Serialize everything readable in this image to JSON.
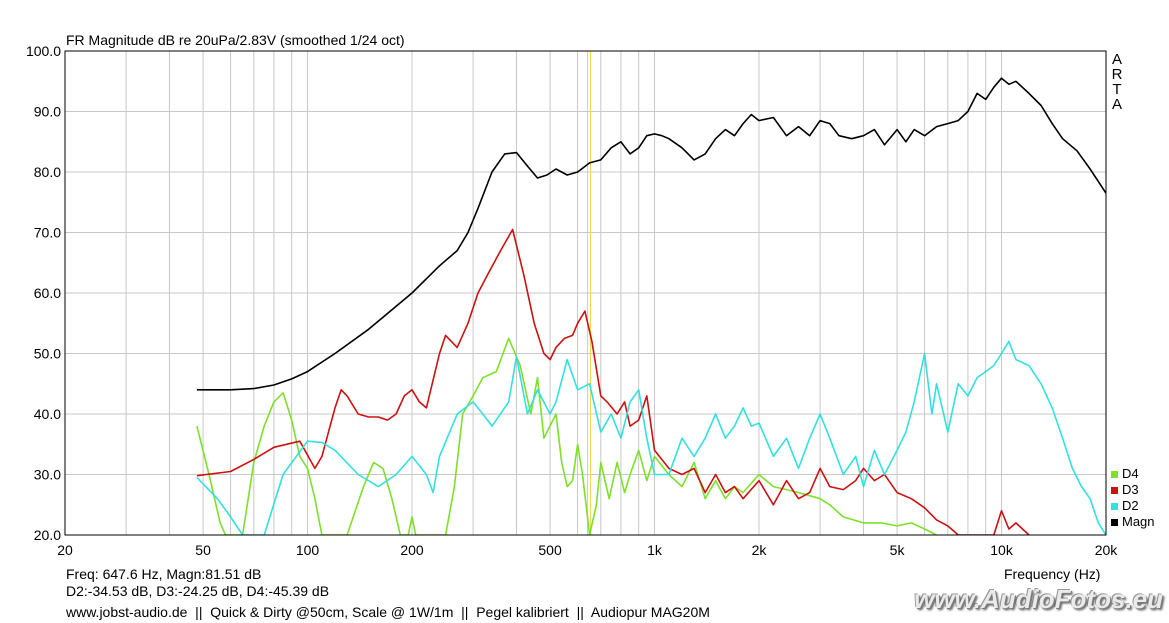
{
  "chart_data": {
    "type": "line",
    "title": "FR Magnitude dB re 20uPa/2.83V (smoothed 1/24 oct)",
    "xlabel": "Frequency (Hz)",
    "ylabel": "",
    "xscale": "log",
    "xlim": [
      20,
      20000
    ],
    "ylim": [
      20,
      100
    ],
    "grid": true,
    "x_ticks": [
      20,
      50,
      100,
      200,
      500,
      1000,
      2000,
      5000,
      10000,
      20000
    ],
    "x_tick_labels": [
      "20",
      "50",
      "100",
      "200",
      "500",
      "1k",
      "2k",
      "5k",
      "10k",
      "20k"
    ],
    "y_ticks": [
      20,
      30,
      40,
      50,
      60,
      70,
      80,
      90,
      100
    ],
    "y_tick_labels": [
      "20.0",
      "30.0",
      "40.0",
      "50.0",
      "60.0",
      "70.0",
      "80.0",
      "90.0",
      "100.0"
    ],
    "cursor_freq": 647.6,
    "legend_position": "bottom-right",
    "series": [
      {
        "name": "Magn",
        "color": "#000000",
        "points": [
          [
            48,
            44
          ],
          [
            60,
            44
          ],
          [
            70,
            44.2
          ],
          [
            80,
            44.8
          ],
          [
            90,
            45.8
          ],
          [
            100,
            47
          ],
          [
            120,
            50
          ],
          [
            150,
            54
          ],
          [
            200,
            60
          ],
          [
            240,
            64.5
          ],
          [
            270,
            67
          ],
          [
            290,
            70
          ],
          [
            310,
            74
          ],
          [
            340,
            80
          ],
          [
            370,
            83
          ],
          [
            400,
            83.2
          ],
          [
            430,
            81
          ],
          [
            460,
            79
          ],
          [
            490,
            79.5
          ],
          [
            520,
            80.5
          ],
          [
            560,
            79.5
          ],
          [
            600,
            80
          ],
          [
            650,
            81.5
          ],
          [
            700,
            82
          ],
          [
            750,
            84
          ],
          [
            800,
            85
          ],
          [
            850,
            83
          ],
          [
            900,
            84
          ],
          [
            950,
            86
          ],
          [
            1000,
            86.3
          ],
          [
            1050,
            86
          ],
          [
            1100,
            85.5
          ],
          [
            1200,
            84
          ],
          [
            1300,
            82
          ],
          [
            1400,
            83
          ],
          [
            1500,
            85.5
          ],
          [
            1600,
            87
          ],
          [
            1700,
            86
          ],
          [
            1800,
            88
          ],
          [
            1900,
            89.5
          ],
          [
            2000,
            88.5
          ],
          [
            2200,
            89
          ],
          [
            2400,
            86
          ],
          [
            2600,
            87.5
          ],
          [
            2800,
            86
          ],
          [
            3000,
            88.5
          ],
          [
            3200,
            88
          ],
          [
            3400,
            86
          ],
          [
            3700,
            85.5
          ],
          [
            4000,
            86
          ],
          [
            4300,
            87
          ],
          [
            4600,
            84.5
          ],
          [
            5000,
            87
          ],
          [
            5300,
            85
          ],
          [
            5600,
            87
          ],
          [
            6000,
            86
          ],
          [
            6500,
            87.5
          ],
          [
            7000,
            88
          ],
          [
            7500,
            88.5
          ],
          [
            8000,
            90
          ],
          [
            8500,
            93
          ],
          [
            9000,
            92
          ],
          [
            9500,
            94
          ],
          [
            10000,
            95.5
          ],
          [
            10500,
            94.5
          ],
          [
            11000,
            95
          ],
          [
            12000,
            93
          ],
          [
            13000,
            91
          ],
          [
            14000,
            88
          ],
          [
            15000,
            85.5
          ],
          [
            16500,
            83.5
          ],
          [
            18000,
            80.5
          ],
          [
            20000,
            76.5
          ]
        ]
      },
      {
        "name": "D2",
        "color": "#33e0e0",
        "points": [
          [
            48,
            29.5
          ],
          [
            55,
            26
          ],
          [
            60,
            23
          ],
          [
            65,
            20
          ],
          [
            75,
            20
          ],
          [
            85,
            30
          ],
          [
            100,
            35.5
          ],
          [
            110,
            35.3
          ],
          [
            120,
            34
          ],
          [
            140,
            30
          ],
          [
            160,
            28
          ],
          [
            180,
            30
          ],
          [
            200,
            33
          ],
          [
            220,
            30
          ],
          [
            230,
            27
          ],
          [
            240,
            33
          ],
          [
            270,
            40
          ],
          [
            300,
            42
          ],
          [
            320,
            40
          ],
          [
            340,
            38
          ],
          [
            380,
            42
          ],
          [
            400,
            49.5
          ],
          [
            430,
            40
          ],
          [
            460,
            44
          ],
          [
            500,
            40
          ],
          [
            520,
            42
          ],
          [
            560,
            49
          ],
          [
            600,
            44
          ],
          [
            650,
            45
          ],
          [
            700,
            37
          ],
          [
            750,
            40
          ],
          [
            800,
            36
          ],
          [
            850,
            42
          ],
          [
            900,
            44
          ],
          [
            950,
            36
          ],
          [
            1000,
            30
          ],
          [
            1100,
            30
          ],
          [
            1200,
            36
          ],
          [
            1300,
            33
          ],
          [
            1400,
            36
          ],
          [
            1500,
            40
          ],
          [
            1600,
            36
          ],
          [
            1700,
            38
          ],
          [
            1800,
            41
          ],
          [
            1900,
            38
          ],
          [
            2000,
            38.5
          ],
          [
            2200,
            33
          ],
          [
            2400,
            36
          ],
          [
            2600,
            31
          ],
          [
            2800,
            36
          ],
          [
            3000,
            40
          ],
          [
            3200,
            36
          ],
          [
            3500,
            30
          ],
          [
            3800,
            33
          ],
          [
            4000,
            28
          ],
          [
            4300,
            34
          ],
          [
            4600,
            30
          ],
          [
            5000,
            34
          ],
          [
            5300,
            37
          ],
          [
            5600,
            42
          ],
          [
            6000,
            50
          ],
          [
            6300,
            40
          ],
          [
            6500,
            45
          ],
          [
            7000,
            37
          ],
          [
            7500,
            45
          ],
          [
            8000,
            43
          ],
          [
            8500,
            46
          ],
          [
            9000,
            47
          ],
          [
            9500,
            48
          ],
          [
            10000,
            50
          ],
          [
            10500,
            52
          ],
          [
            11000,
            49
          ],
          [
            12000,
            48
          ],
          [
            13000,
            45
          ],
          [
            14000,
            41
          ],
          [
            15000,
            36
          ],
          [
            16000,
            31
          ],
          [
            17000,
            28
          ],
          [
            18000,
            26
          ],
          [
            19000,
            22
          ],
          [
            20000,
            20
          ]
        ]
      },
      {
        "name": "D3",
        "color": "#cc1111",
        "points": [
          [
            48,
            29.8
          ],
          [
            60,
            30.5
          ],
          [
            70,
            32.5
          ],
          [
            80,
            34.5
          ],
          [
            95,
            35.5
          ],
          [
            105,
            31
          ],
          [
            110,
            33
          ],
          [
            120,
            41
          ],
          [
            125,
            44
          ],
          [
            130,
            43
          ],
          [
            140,
            40
          ],
          [
            150,
            39.5
          ],
          [
            160,
            39.5
          ],
          [
            170,
            39
          ],
          [
            180,
            40
          ],
          [
            190,
            43
          ],
          [
            200,
            44
          ],
          [
            210,
            42
          ],
          [
            220,
            41
          ],
          [
            240,
            50
          ],
          [
            250,
            53
          ],
          [
            270,
            51
          ],
          [
            290,
            55
          ],
          [
            310,
            60
          ],
          [
            330,
            63
          ],
          [
            360,
            67
          ],
          [
            390,
            70.5
          ],
          [
            420,
            63
          ],
          [
            450,
            55
          ],
          [
            480,
            50
          ],
          [
            500,
            49
          ],
          [
            520,
            51
          ],
          [
            550,
            52.5
          ],
          [
            580,
            53
          ],
          [
            600,
            55
          ],
          [
            630,
            57
          ],
          [
            660,
            52
          ],
          [
            700,
            43
          ],
          [
            730,
            42
          ],
          [
            780,
            40
          ],
          [
            820,
            42
          ],
          [
            850,
            38
          ],
          [
            900,
            39
          ],
          [
            950,
            43
          ],
          [
            1000,
            34
          ],
          [
            1100,
            31
          ],
          [
            1200,
            30
          ],
          [
            1300,
            31
          ],
          [
            1400,
            27
          ],
          [
            1500,
            30
          ],
          [
            1600,
            27
          ],
          [
            1700,
            28
          ],
          [
            1800,
            26
          ],
          [
            2000,
            29
          ],
          [
            2200,
            25
          ],
          [
            2400,
            29
          ],
          [
            2600,
            26
          ],
          [
            2800,
            27
          ],
          [
            3000,
            31
          ],
          [
            3200,
            28
          ],
          [
            3500,
            27.5
          ],
          [
            3800,
            29
          ],
          [
            4000,
            31
          ],
          [
            4300,
            29
          ],
          [
            4600,
            30
          ],
          [
            5000,
            27
          ],
          [
            5500,
            26
          ],
          [
            6000,
            24.5
          ],
          [
            6500,
            22.5
          ],
          [
            7000,
            21.5
          ],
          [
            7500,
            20
          ],
          [
            9500,
            20
          ],
          [
            10000,
            24
          ],
          [
            10500,
            21
          ],
          [
            11000,
            22
          ],
          [
            12000,
            20
          ]
        ]
      },
      {
        "name": "D4",
        "color": "#7ee02a",
        "points": [
          [
            48,
            38
          ],
          [
            52,
            30
          ],
          [
            56,
            22
          ],
          [
            58,
            20
          ],
          [
            65,
            20
          ],
          [
            70,
            32
          ],
          [
            75,
            38
          ],
          [
            80,
            42
          ],
          [
            85,
            43.5
          ],
          [
            90,
            39
          ],
          [
            95,
            33
          ],
          [
            100,
            31
          ],
          [
            105,
            26
          ],
          [
            110,
            20
          ],
          [
            130,
            20
          ],
          [
            145,
            28
          ],
          [
            155,
            32
          ],
          [
            165,
            31
          ],
          [
            175,
            26
          ],
          [
            185,
            20
          ],
          [
            195,
            20
          ],
          [
            200,
            23
          ],
          [
            205,
            20
          ],
          [
            230,
            20
          ],
          [
            250,
            20
          ],
          [
            265,
            28
          ],
          [
            280,
            40
          ],
          [
            300,
            43
          ],
          [
            320,
            46
          ],
          [
            350,
            47
          ],
          [
            380,
            52.5
          ],
          [
            410,
            48
          ],
          [
            440,
            40
          ],
          [
            460,
            46
          ],
          [
            480,
            36
          ],
          [
            520,
            40
          ],
          [
            540,
            32
          ],
          [
            560,
            28
          ],
          [
            580,
            29
          ],
          [
            600,
            35
          ],
          [
            620,
            30
          ],
          [
            650,
            20
          ],
          [
            680,
            25
          ],
          [
            700,
            32
          ],
          [
            740,
            26
          ],
          [
            780,
            32
          ],
          [
            820,
            27
          ],
          [
            850,
            30
          ],
          [
            900,
            34
          ],
          [
            950,
            29
          ],
          [
            1000,
            33
          ],
          [
            1100,
            30
          ],
          [
            1200,
            28
          ],
          [
            1300,
            32
          ],
          [
            1400,
            26
          ],
          [
            1500,
            29
          ],
          [
            1600,
            26
          ],
          [
            1700,
            28
          ],
          [
            1800,
            27
          ],
          [
            2000,
            30
          ],
          [
            2200,
            28
          ],
          [
            2400,
            27.5
          ],
          [
            2600,
            27
          ],
          [
            2800,
            26.5
          ],
          [
            3000,
            26
          ],
          [
            3200,
            25
          ],
          [
            3500,
            23
          ],
          [
            4000,
            22
          ],
          [
            4500,
            22
          ],
          [
            5000,
            21.5
          ],
          [
            5500,
            22
          ],
          [
            6000,
            21
          ],
          [
            6500,
            20
          ]
        ]
      }
    ]
  },
  "arta": [
    "A",
    "R",
    "T",
    "A"
  ],
  "legend": [
    {
      "label": "D4",
      "color": "#7ee02a"
    },
    {
      "label": "D3",
      "color": "#cc1111"
    },
    {
      "label": "D2",
      "color": "#33e0e0"
    },
    {
      "label": "Magn",
      "color": "#000000"
    }
  ],
  "readout": {
    "line1": "Freq: 647.6 Hz, Magn:81.51 dB",
    "line2": "D2:-34.53 dB, D3:-24.25 dB, D4:-45.39 dB"
  },
  "footer": "www.jobst-audio.de  ||  Quick & Dirty @50cm, Scale @ 1W/1m  ||  Pegel kalibriert  ||  Audiopur MAG20M",
  "watermark": "www.AudioFotos.eu",
  "colors": {
    "cursor": "#e6d84a",
    "grid": "#c8c8c8",
    "axis": "#000000"
  }
}
